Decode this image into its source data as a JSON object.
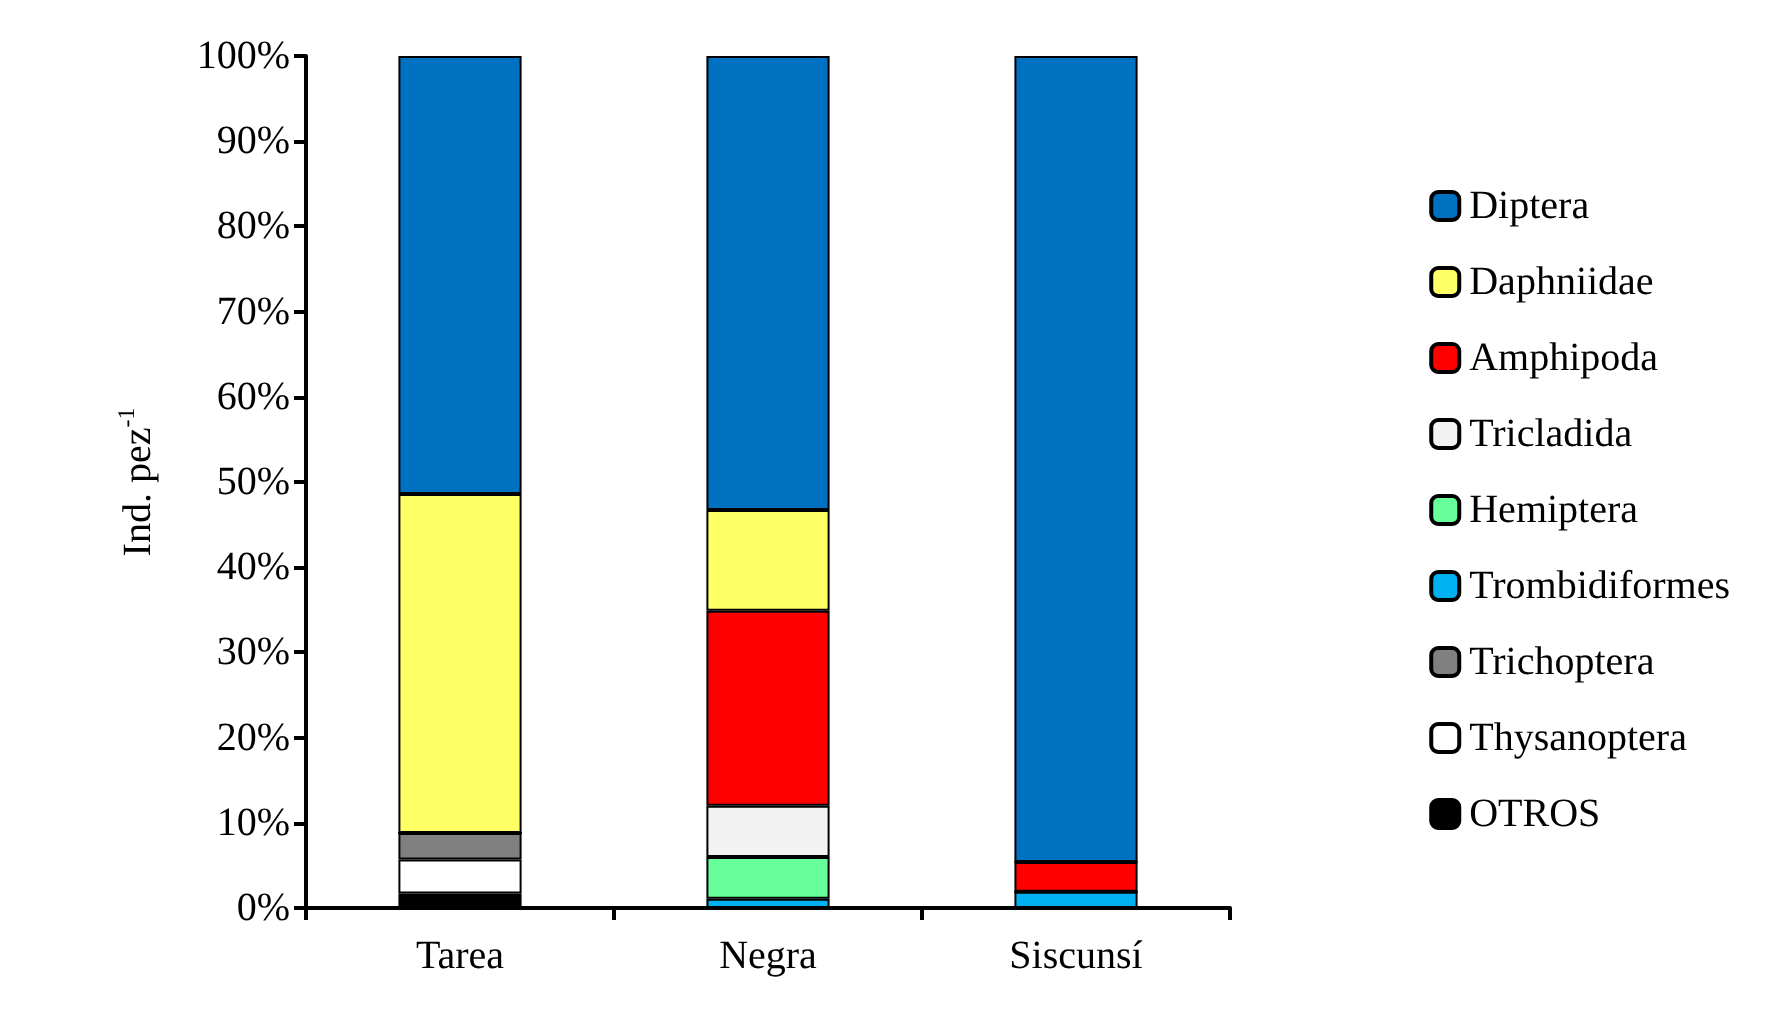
{
  "chart_data": {
    "type": "bar",
    "stacked": true,
    "ylabel": "Ind. pez$^{-1}$",
    "categories": [
      "Tarea",
      "Negra",
      "Siscunsí"
    ],
    "series": [
      {
        "name": "OTROS",
        "color": "#000000",
        "values": [
          1.7,
          0,
          0
        ]
      },
      {
        "name": "Thysanoptera",
        "color": "#ffffff",
        "values": [
          4.0,
          0,
          0
        ]
      },
      {
        "name": "Trichoptera",
        "color": "#808080",
        "values": [
          3.1,
          0,
          0
        ]
      },
      {
        "name": "Trombidiformes",
        "color": "#00b0f0",
        "values": [
          0,
          1.1,
          1.9
        ]
      },
      {
        "name": "Hemiptera",
        "color": "#66ff99",
        "values": [
          0,
          4.9,
          0
        ]
      },
      {
        "name": "Tricladida",
        "color": "#f2f2f2",
        "values": [
          0,
          6.0,
          0
        ]
      },
      {
        "name": "Amphipoda",
        "color": "#ff0000",
        "values": [
          0,
          22.9,
          3.5
        ]
      },
      {
        "name": "Daphniidae",
        "color": "#ffff66",
        "values": [
          39.8,
          11.8,
          0
        ]
      },
      {
        "name": "Diptera",
        "color": "#0070c0",
        "values": [
          51.4,
          53.3,
          94.6
        ]
      }
    ],
    "ylim": [
      0,
      100
    ],
    "yticks": [
      {
        "value": 0,
        "label": "0%"
      },
      {
        "value": 10,
        "label": "10%"
      },
      {
        "value": 20,
        "label": "20%"
      },
      {
        "value": 30,
        "label": "30%"
      },
      {
        "value": 40,
        "label": "40%"
      },
      {
        "value": 50,
        "label": "50%"
      },
      {
        "value": 60,
        "label": "60%"
      },
      {
        "value": 70,
        "label": "70%"
      },
      {
        "value": 80,
        "label": "80%"
      },
      {
        "value": 90,
        "label": "90%"
      },
      {
        "value": 100,
        "label": "100%"
      }
    ],
    "grid": false,
    "legend": "right"
  }
}
